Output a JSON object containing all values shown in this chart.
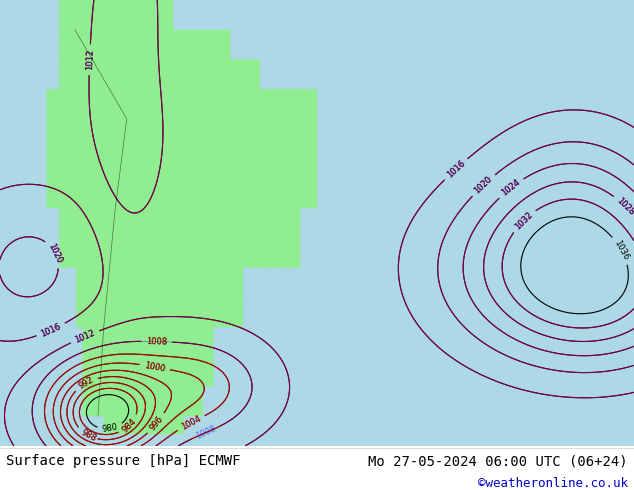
{
  "title_left": "Surface pressure [hPa] ECMWF",
  "title_right": "Mo 27-05-2024 06:00 UTC (06+24)",
  "copyright": "©weatheronline.co.uk",
  "bg_color": "#ffffff",
  "footer_color": "#000000",
  "copyright_color": "#0000cc",
  "figsize": [
    6.34,
    4.9
  ],
  "dpi": 100
}
